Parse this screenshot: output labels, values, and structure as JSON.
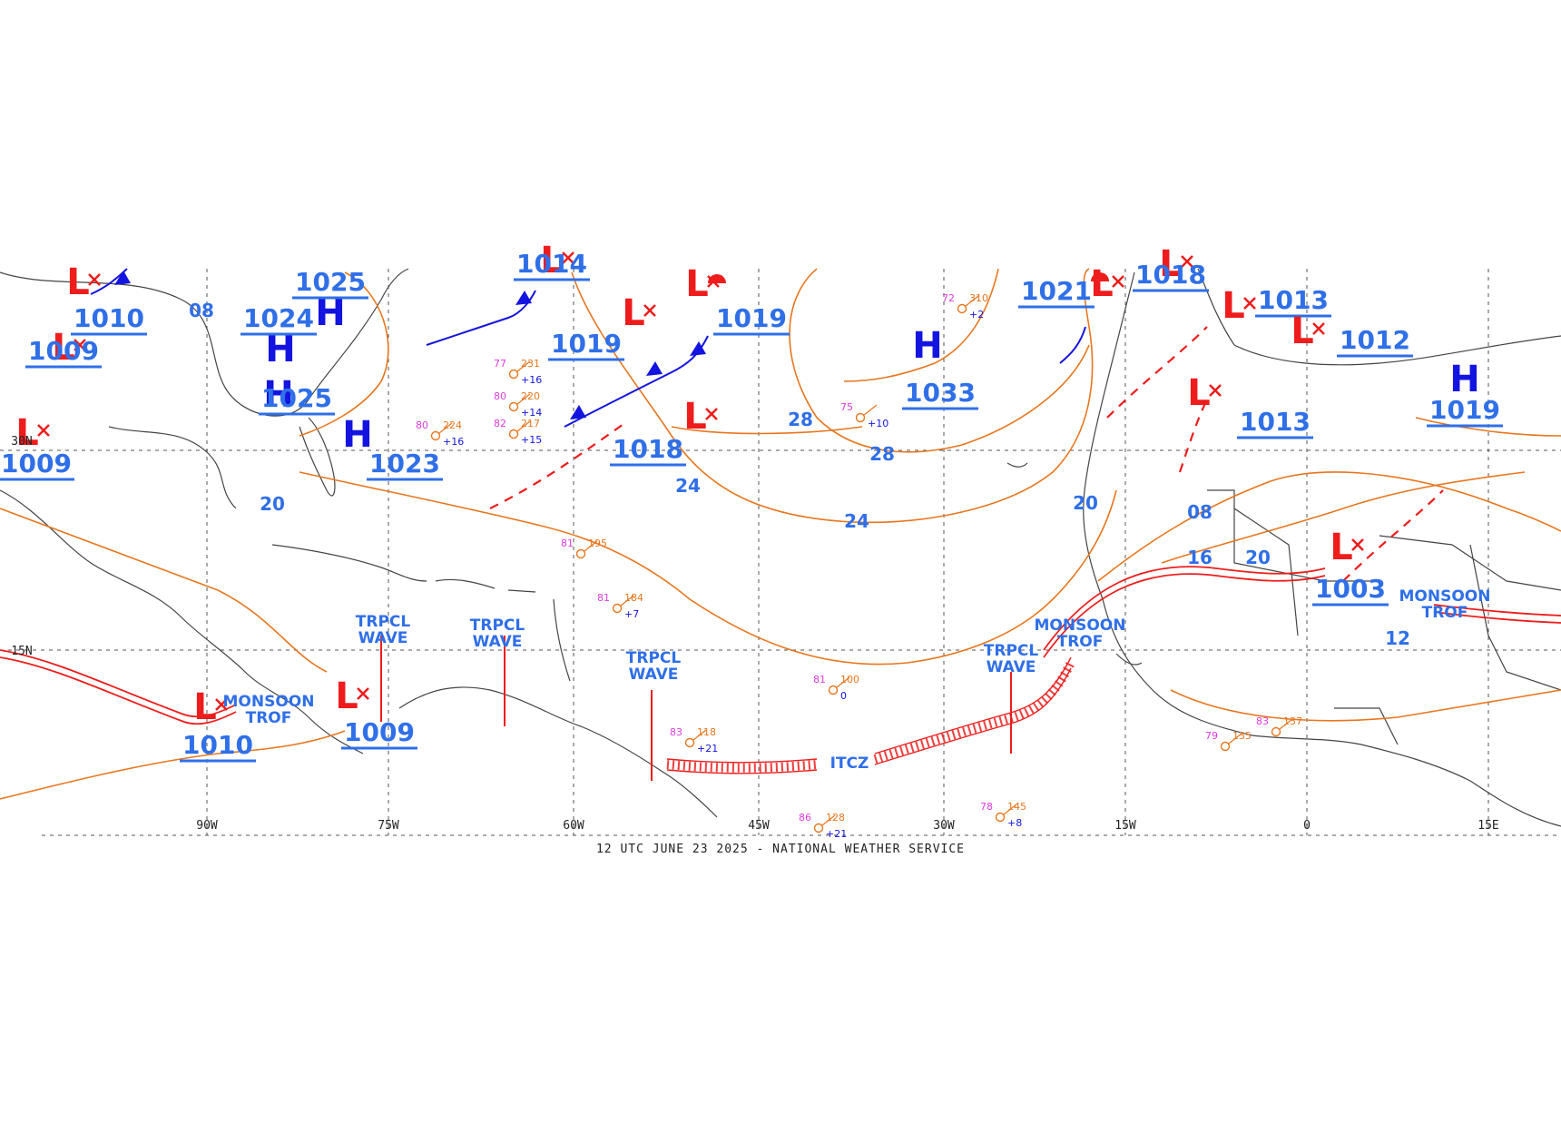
{
  "map": {
    "title": "12 UTC JUNE 23 2025 - NATIONAL WEATHER SERVICE",
    "colors": {
      "low": "#ee1c1c",
      "high": "#1414e0",
      "pressure_label": "#2f6fe8",
      "isobar": "#e8761e",
      "trough": "#ee1c1c",
      "grid": "#555555",
      "coast": "#444444",
      "station_magenta": "#e03ce0",
      "station_green": "#20a020",
      "station_blue": "#1414e0"
    },
    "longitude_labels": [
      "90W",
      "75W",
      "60W",
      "45W",
      "30W",
      "15W",
      "0",
      "15E"
    ],
    "latitude_labels": [
      "30N",
      "15N"
    ],
    "isobar_labels": [
      "20",
      "20",
      "24",
      "24",
      "28",
      "28",
      "20",
      "16",
      "12",
      "08",
      "08"
    ],
    "pressure_systems": [
      {
        "type": "L",
        "value": "1009"
      },
      {
        "type": "L",
        "value": "1010"
      },
      {
        "type": "L",
        "value": "1009"
      },
      {
        "type": "H",
        "value": "1025"
      },
      {
        "type": "H",
        "value": "1024"
      },
      {
        "type": "H",
        "value": "1025"
      },
      {
        "type": "H",
        "value": "1023"
      },
      {
        "type": "L",
        "value": "1014"
      },
      {
        "type": "L",
        "value": "1019"
      },
      {
        "type": "L",
        "value": "1019"
      },
      {
        "type": "L",
        "value": "1018"
      },
      {
        "type": "H",
        "value": "1033"
      },
      {
        "type": "L",
        "value": "1021"
      },
      {
        "type": "L",
        "value": "1018"
      },
      {
        "type": "L",
        "value": "1013"
      },
      {
        "type": "L",
        "value": "1012"
      },
      {
        "type": "L",
        "value": "1013"
      },
      {
        "type": "H",
        "value": "1019"
      },
      {
        "type": "L",
        "value": "1003"
      },
      {
        "type": "L",
        "value": "1010"
      },
      {
        "type": "L",
        "value": "1009"
      }
    ],
    "features": [
      {
        "line1": "TRPCL",
        "line2": "WAVE"
      },
      {
        "line1": "TRPCL",
        "line2": "WAVE"
      },
      {
        "line1": "TRPCL",
        "line2": "WAVE"
      },
      {
        "line1": "TRPCL",
        "line2": "WAVE"
      },
      {
        "line1": "MONSOON",
        "line2": "TROF"
      },
      {
        "line1": "MONSOON",
        "line2": "TROF"
      },
      {
        "line1": "MONSOON",
        "line2": "TROF"
      },
      {
        "line1": "ITCZ",
        "line2": ""
      }
    ],
    "station_samples": [
      {
        "temp": "77",
        "pressure": "231",
        "tend": "+16"
      },
      {
        "temp": "80",
        "pressure": "220",
        "tend": "+14"
      },
      {
        "temp": "82",
        "pressure": "217",
        "tend": "+15"
      },
      {
        "temp": "75",
        "pressure": "",
        "tend": "+10"
      },
      {
        "temp": "83",
        "pressure": "118",
        "tend": "+21"
      },
      {
        "temp": "81",
        "pressure": "100",
        "tend": "0"
      },
      {
        "temp": "86",
        "pressure": "128",
        "tend": "+21"
      },
      {
        "temp": "78",
        "pressure": "145",
        "tend": "+8"
      },
      {
        "temp": "81",
        "pressure": "195",
        "tend": ""
      },
      {
        "temp": "81",
        "pressure": "184",
        "tend": "+7"
      },
      {
        "temp": "72",
        "pressure": "310",
        "tend": "+2"
      },
      {
        "temp": "80",
        "pressure": "224",
        "tend": "+16"
      },
      {
        "temp": "83",
        "pressure": "137",
        "tend": ""
      },
      {
        "temp": "79",
        "pressure": "135",
        "tend": ""
      }
    ]
  }
}
